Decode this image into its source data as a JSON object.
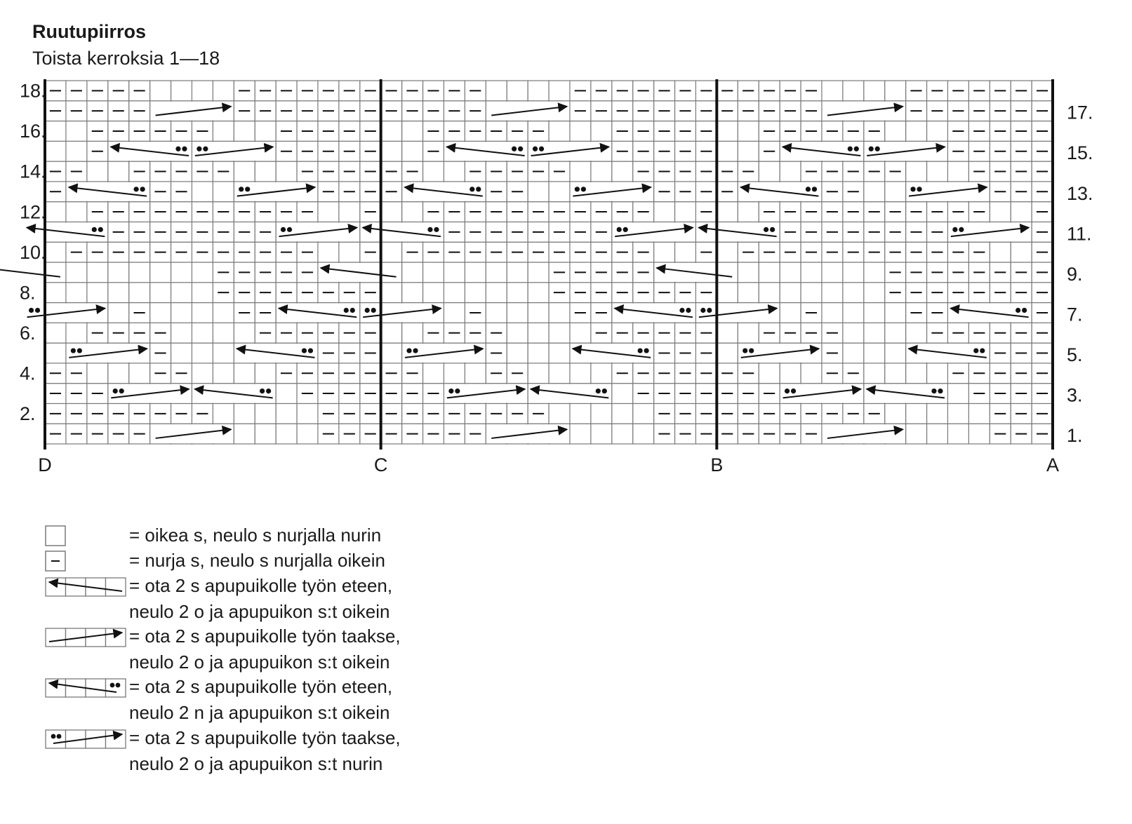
{
  "title": "Ruutupiirros",
  "subtitle": "Toista kerroksia 1—18",
  "chart": {
    "columns": 48,
    "rows": 18,
    "left_row_labels": [
      "18.",
      "16.",
      "14.",
      "12.",
      "10.",
      "8.",
      "6.",
      "4.",
      "2."
    ],
    "right_row_labels": [
      "17.",
      "15.",
      "13.",
      "11.",
      "9.",
      "7.",
      "5.",
      "3.",
      "1."
    ],
    "section_labels": [
      "D",
      "C",
      "B",
      "A"
    ],
    "repeats": 3,
    "purl_runs_per_repeat": [
      [
        [
          1,
          3
        ],
        [
          9,
          16
        ]
      ],
      [
        [
          1,
          3
        ],
        [
          9,
          16
        ]
      ],
      [
        [
          1,
          4
        ],
        [
          13,
          16
        ]
      ],
      [
        [
          1,
          5
        ],
        [
          10,
          11
        ],
        [
          15,
          16
        ]
      ],
      [
        [
          1,
          6
        ],
        [
          11,
          14
        ]
      ],
      [
        [
          1,
          6
        ],
        [
          11,
          14
        ]
      ],
      [
        [
          1,
          7
        ],
        [
          12,
          12
        ]
      ],
      [
        [
          1,
          8
        ]
      ],
      [
        [
          1,
          8
        ]
      ],
      [
        [
          1,
          1
        ],
        [
          4,
          15
        ]
      ],
      [
        [
          1,
          1
        ],
        [
          4,
          15
        ]
      ],
      [
        [
          1,
          1
        ],
        [
          4,
          14
        ]
      ],
      [
        [
          1,
          3
        ],
        [
          10,
          11
        ],
        [
          15,
          16
        ]
      ],
      [
        [
          1,
          4
        ],
        [
          8,
          12
        ],
        [
          15,
          16
        ]
      ],
      [
        [
          1,
          5
        ],
        [
          9,
          14
        ]
      ],
      [
        [
          1,
          5
        ],
        [
          9,
          14
        ]
      ],
      [
        [
          1,
          7
        ],
        [
          12,
          16
        ]
      ],
      [
        [
          1,
          7
        ],
        [
          12,
          16
        ]
      ]
    ],
    "cables_per_repeat": [
      {
        "row": 1,
        "c1": 8,
        "c2": 11,
        "dir": "right",
        "dots": "none"
      },
      {
        "row": 3,
        "c1": 6,
        "c2": 9,
        "dir": "left",
        "dots": "right"
      },
      {
        "row": 3,
        "c1": 10,
        "c2": 13,
        "dir": "right",
        "dots": "left"
      },
      {
        "row": 5,
        "c1": 4,
        "c2": 7,
        "dir": "left",
        "dots": "right"
      },
      {
        "row": 5,
        "c1": 12,
        "c2": 15,
        "dir": "right",
        "dots": "left"
      },
      {
        "row": 7,
        "c1": 2,
        "c2": 5,
        "dir": "left",
        "dots": "right"
      },
      {
        "row": 7,
        "c1": 14,
        "c2": 17,
        "dir": "right",
        "dots": "left"
      },
      {
        "row": 9,
        "c1": 16,
        "c2": 19,
        "dir": "left",
        "dots": "none"
      },
      {
        "row": 11,
        "c1": 2,
        "c2": 5,
        "dir": "right",
        "dots": "left"
      },
      {
        "row": 11,
        "c1": 14,
        "c2": 17,
        "dir": "left",
        "dots": "right"
      },
      {
        "row": 13,
        "c1": 4,
        "c2": 7,
        "dir": "right",
        "dots": "left"
      },
      {
        "row": 13,
        "c1": 12,
        "c2": 15,
        "dir": "left",
        "dots": "right"
      },
      {
        "row": 15,
        "c1": 6,
        "c2": 9,
        "dir": "right",
        "dots": "left"
      },
      {
        "row": 15,
        "c1": 10,
        "c2": 13,
        "dir": "left",
        "dots": "right"
      },
      {
        "row": 17,
        "c1": 8,
        "c2": 11,
        "dir": "right",
        "dots": "none"
      }
    ]
  },
  "legend": [
    {
      "symbol": "knit",
      "line1": "= oikea s, neulo s nurjalla nurin",
      "line2": ""
    },
    {
      "symbol": "purl",
      "line1": "= nurja s, neulo s nurjalla oikein",
      "line2": ""
    },
    {
      "symbol": "cable-left",
      "line1": "= ota 2 s apupuikolle työn eteen,",
      "line2": "neulo 2 o ja apupuikon s:t oikein"
    },
    {
      "symbol": "cable-right",
      "line1": "= ota 2 s apupuikolle työn taakse,",
      "line2": "neulo 2 o ja apupuikon s:t oikein"
    },
    {
      "symbol": "cable-left-purl",
      "line1": "= ota 2 s apupuikolle työn eteen,",
      "line2": "neulo 2 n ja apupuikon s:t oikein"
    },
    {
      "symbol": "cable-right-purl",
      "line1": "= ota 2 s apupuikolle työn taakse,",
      "line2": "neulo 2 o ja apupuikon s:t nurin"
    }
  ]
}
